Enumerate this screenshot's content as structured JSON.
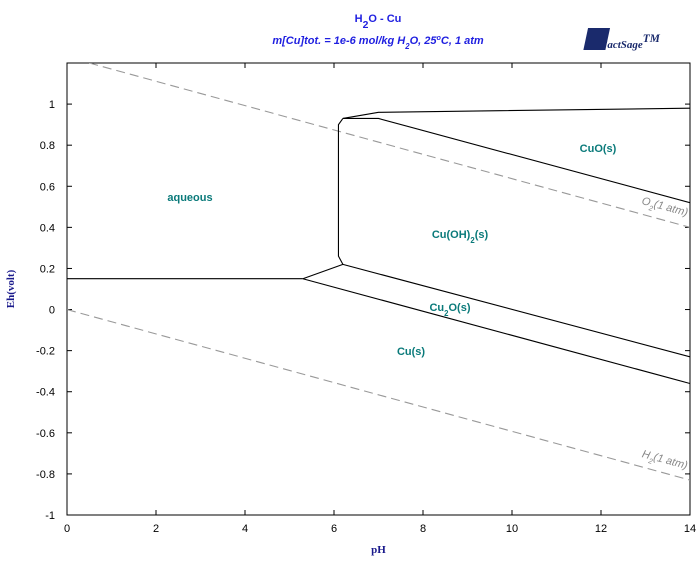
{
  "chart_data": {
    "type": "line",
    "title": {
      "parts": [
        "H",
        "2",
        "O - Cu"
      ],
      "roles": [
        "normal",
        "sub",
        "normal"
      ]
    },
    "subtitle": {
      "parts": [
        "m[Cu]tot. = 1e-6 mol/kg H",
        "2",
        "O,  25",
        "o",
        "C, 1 atm"
      ],
      "roles": [
        "normal",
        "sub",
        "normal",
        "sup",
        "normal"
      ]
    },
    "logo": {
      "parts": [
        "FactSage",
        "TM"
      ],
      "roles": [
        "normal",
        "sup"
      ]
    },
    "x_label": "pH",
    "y_label": "Eh(volt)",
    "xlim": [
      0,
      14
    ],
    "ylim": [
      -1,
      1.2
    ],
    "xticks": [
      0,
      2,
      4,
      6,
      8,
      10,
      12,
      14
    ],
    "yticks": [
      -1,
      -0.8,
      -0.6,
      -0.4,
      -0.2,
      0,
      0.2,
      0.4,
      0.6,
      0.8,
      1
    ],
    "grid": false,
    "series": [
      {
        "x": [
          0.5,
          14
        ],
        "values": [
          1.2,
          0.4
        ],
        "color": "#999999",
        "dashed": true
      },
      {
        "x": [
          0,
          14
        ],
        "values": [
          0,
          -0.83
        ],
        "color": "#999999",
        "dashed": true
      },
      {
        "x": [
          0,
          5.3
        ],
        "values": [
          0.15,
          0.15
        ],
        "color": "#000000",
        "dashed": false
      },
      {
        "x": [
          5.3,
          14
        ],
        "values": [
          0.15,
          -0.36
        ],
        "color": "#000000",
        "dashed": false
      },
      {
        "x": [
          5.3,
          6.2
        ],
        "values": [
          0.15,
          0.22
        ],
        "color": "#000000",
        "dashed": false
      },
      {
        "x": [
          6.2,
          14
        ],
        "values": [
          0.22,
          -0.23
        ],
        "color": "#000000",
        "dashed": false
      },
      {
        "x": [
          6.2,
          6.1,
          6.1,
          6.2
        ],
        "values": [
          0.22,
          0.26,
          0.9,
          0.93
        ],
        "color": "#000000",
        "dashed": false
      },
      {
        "x": [
          6.2,
          7,
          14
        ],
        "values": [
          0.93,
          0.96,
          0.98
        ],
        "color": "#000000",
        "dashed": false
      },
      {
        "x": [
          6.2,
          7,
          14
        ],
        "values": [
          0.93,
          0.93,
          0.52
        ],
        "color": "#000000",
        "dashed": false
      }
    ],
    "annotations": [
      {
        "parts": [
          "aqueous"
        ],
        "roles": [
          "normal"
        ]
      },
      {
        "parts": [
          "CuO(s)"
        ],
        "roles": [
          "normal"
        ]
      },
      {
        "parts": [
          "Cu(OH)",
          "2",
          "(s)"
        ],
        "roles": [
          "normal",
          "sub",
          "normal"
        ]
      },
      {
        "parts": [
          "Cu",
          "2",
          "O(s)"
        ],
        "roles": [
          "normal",
          "sub",
          "normal"
        ]
      },
      {
        "parts": [
          "Cu(s)"
        ],
        "roles": [
          "normal"
        ]
      },
      {
        "parts": [
          "O",
          "2",
          "(1 atm)"
        ],
        "roles": [
          "normal",
          "sub",
          "normal"
        ]
      },
      {
        "parts": [
          "H",
          "2",
          "(1 atm)"
        ],
        "roles": [
          "normal",
          "sub",
          "normal"
        ]
      }
    ]
  }
}
